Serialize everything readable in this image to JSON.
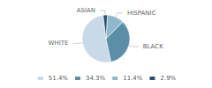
{
  "chart_data": {
    "type": "pie",
    "categories": [
      "WHITE",
      "BLACK",
      "HISPANIC",
      "ASIAN"
    ],
    "values": [
      51.4,
      34.3,
      11.4,
      2.9
    ],
    "colors": [
      "#c9d9e8",
      "#5b8fa8",
      "#8fb8cc",
      "#2b4f6e"
    ],
    "value_labels": [
      "51.4%",
      "34.3%",
      "11.4%",
      "2.9%"
    ],
    "legend": "bottom"
  }
}
